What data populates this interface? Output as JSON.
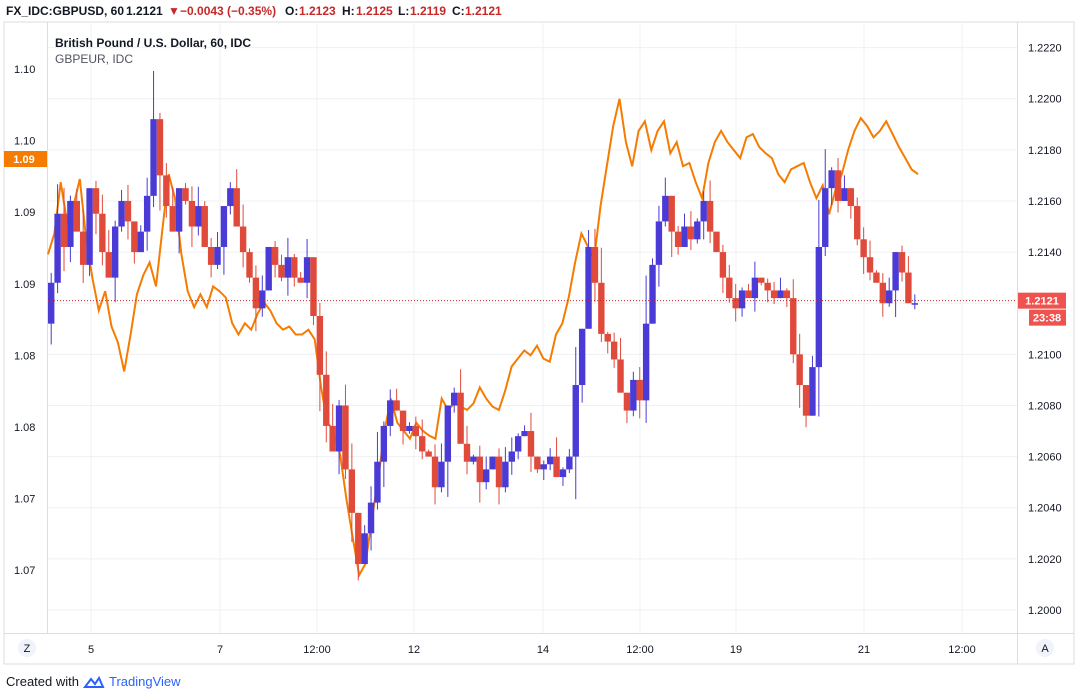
{
  "header": {
    "symbol": "FX_IDC:GBPUSD, 60",
    "last": "1.2121",
    "change_arrow": "▼",
    "change": "−0.0043 (−0.35%)",
    "open_label": "O:",
    "open_value": "1.2123",
    "high_label": "H:",
    "high_value": "1.2125",
    "low_label": "L:",
    "low_value": "1.2119",
    "close_label": "C:",
    "close_value": "1.2121"
  },
  "chart_data": {
    "type": "line",
    "title": "British Pound / U.S. Dollar, 60, IDC",
    "subtitle": "GBPEUR, IDC",
    "x_tick_labels": [
      "5",
      "7",
      "12:00",
      "12",
      "14",
      "12:00",
      "19",
      "21",
      "12:00"
    ],
    "right_axis": {
      "ticks": [
        "1.2220",
        "1.2200",
        "1.2180",
        "1.2160",
        "1.2140",
        "1.2120",
        "1.2100",
        "1.2080",
        "1.2060",
        "1.2040",
        "1.2020",
        "1.2000"
      ],
      "ylim": [
        1.1991,
        1.223
      ],
      "current_price_label": "1.2121",
      "countdown_label": "23:38"
    },
    "left_axis": {
      "ticks": [
        "1.10",
        "1.10",
        "1.09",
        "1.09",
        "1.08",
        "1.08",
        "1.07",
        "1.07"
      ],
      "current_value_label": "1.09"
    },
    "grid": true,
    "series": [
      {
        "name": "British Pound / U.S. Dollar",
        "style": "candlestick-line",
        "values": [
          1.2112,
          1.2128,
          1.2155,
          1.2142,
          1.216,
          1.2148,
          1.2135,
          1.2165,
          1.2155,
          1.214,
          1.213,
          1.215,
          1.216,
          1.2152,
          1.214,
          1.2148,
          1.2162,
          1.2192,
          1.217,
          1.2158,
          1.2148,
          1.2165,
          1.216,
          1.215,
          1.2158,
          1.2142,
          1.2135,
          1.2142,
          1.2158,
          1.2165,
          1.215,
          1.214,
          1.213,
          1.2118,
          1.2125,
          1.2142,
          1.2135,
          1.213,
          1.2138,
          1.213,
          1.2128,
          1.2138,
          1.2115,
          1.2092,
          1.2072,
          1.2062,
          1.208,
          1.2055,
          1.2038,
          1.2018,
          1.203,
          1.2042,
          1.2058,
          1.2072,
          1.2082,
          1.2078,
          1.207,
          1.2072,
          1.2068,
          1.2062,
          1.206,
          1.2048,
          1.2058,
          1.208,
          1.2085,
          1.2065,
          1.2058,
          1.206,
          1.205,
          1.2055,
          1.206,
          1.2048,
          1.2058,
          1.2062,
          1.2068,
          1.207,
          1.206,
          1.2055,
          1.2057,
          1.206,
          1.2052,
          1.2055,
          1.206,
          1.2088,
          1.211,
          1.2142,
          1.2128,
          1.2108,
          1.2105,
          1.2098,
          1.2085,
          1.2078,
          1.209,
          1.2082,
          1.2112,
          1.2135,
          1.2152,
          1.2162,
          1.2148,
          1.2142,
          1.215,
          1.2145,
          1.2152,
          1.216,
          1.2148,
          1.214,
          1.213,
          1.2122,
          1.2118,
          1.2125,
          1.2122,
          1.213,
          1.2128,
          1.2125,
          1.2122,
          1.2125,
          1.2122,
          1.21,
          1.2088,
          1.2076,
          1.2095,
          1.2142,
          1.2165,
          1.2172,
          1.216,
          1.2165,
          1.2158,
          1.2145,
          1.2138,
          1.2132,
          1.2128,
          1.212,
          1.2125,
          1.214,
          1.2132,
          1.212,
          1.212
        ]
      },
      {
        "name": "GBPEUR",
        "color": "#f57c00",
        "values": [
          1.0905,
          1.0918,
          1.095,
          1.0925,
          1.0935,
          1.0952,
          1.0915,
          1.089,
          1.087,
          1.0882,
          1.086,
          1.085,
          1.0832,
          1.0855,
          1.088,
          1.0892,
          1.09,
          1.0885,
          1.092,
          1.0955,
          1.094,
          1.0905,
          1.0882,
          1.0872,
          1.088,
          1.0872,
          1.0885,
          1.0882,
          1.0878,
          1.0862,
          1.0855,
          1.0862,
          1.0858,
          1.0868,
          1.0875,
          1.087,
          1.0862,
          1.0858,
          1.086,
          1.0855,
          1.0855,
          1.0858,
          1.0852,
          1.0822,
          1.08,
          1.0795,
          1.078,
          1.0752,
          1.0728,
          1.0705,
          1.0712,
          1.074,
          1.0765,
          1.0795,
          1.0815,
          1.08,
          1.0795,
          1.079,
          1.08,
          1.0795,
          1.0792,
          1.079,
          1.0815,
          1.0808,
          1.0812,
          1.081,
          1.0808,
          1.0812,
          1.0822,
          1.0815,
          1.081,
          1.0808,
          1.082,
          1.0835,
          1.084,
          1.0845,
          1.0842,
          1.0848,
          1.084,
          1.0838,
          1.0855,
          1.0862,
          1.0878,
          1.09,
          1.0918,
          1.091,
          1.0902,
          1.0935,
          1.096,
          1.0985,
          1.1002,
          1.0975,
          1.096,
          1.0982,
          1.0988,
          1.097,
          1.0982,
          1.0988,
          1.0968,
          1.0975,
          1.096,
          1.0962,
          1.095,
          1.094,
          1.0962,
          1.0975,
          1.0982,
          1.0975,
          1.097,
          1.0965,
          1.0978,
          1.098,
          1.0972,
          1.0968,
          1.0965,
          1.0955,
          1.095,
          1.0958,
          1.096,
          1.0962,
          1.095,
          1.094,
          1.0948,
          1.093,
          1.0945,
          1.0955,
          1.097,
          1.0982,
          1.099,
          1.0985,
          1.0978,
          1.0982,
          1.0988,
          1.098,
          1.0972,
          1.0965,
          1.0958,
          1.0955
        ]
      }
    ]
  },
  "toolbar": {
    "zoom_button": "Z",
    "auto_scale_button": "A"
  },
  "footer": {
    "created_with": "Created with",
    "brand": "TradingView"
  }
}
